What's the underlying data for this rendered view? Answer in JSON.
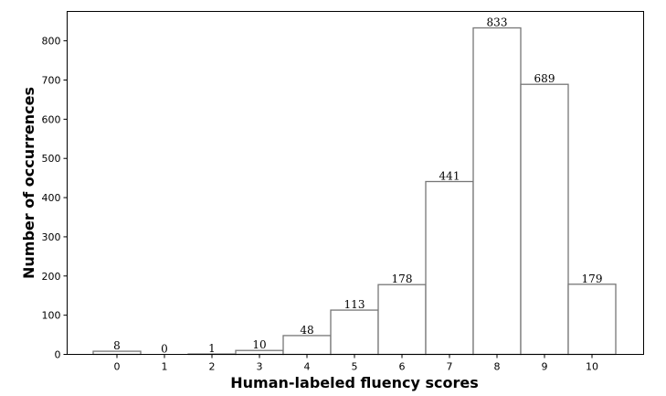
{
  "chart_data": {
    "type": "bar",
    "title": "",
    "xlabel": "Human-labeled fluency scores",
    "ylabel": "Number of occurrences",
    "categories": [
      "0",
      "1",
      "2",
      "3",
      "4",
      "5",
      "6",
      "7",
      "8",
      "9",
      "10"
    ],
    "values": [
      8,
      0,
      1,
      10,
      48,
      113,
      178,
      441,
      833,
      689,
      179
    ],
    "data_labels": [
      "8",
      "0",
      "1",
      "10",
      "48",
      "113",
      "178",
      "441",
      "833",
      "689",
      "179"
    ],
    "ylim": [
      0,
      875
    ],
    "yticks": [
      0,
      100,
      200,
      300,
      400,
      500,
      600,
      700,
      800
    ],
    "grid": false,
    "legend": "none",
    "bar_fill": "#ffffff",
    "bar_edge": "#777777"
  }
}
